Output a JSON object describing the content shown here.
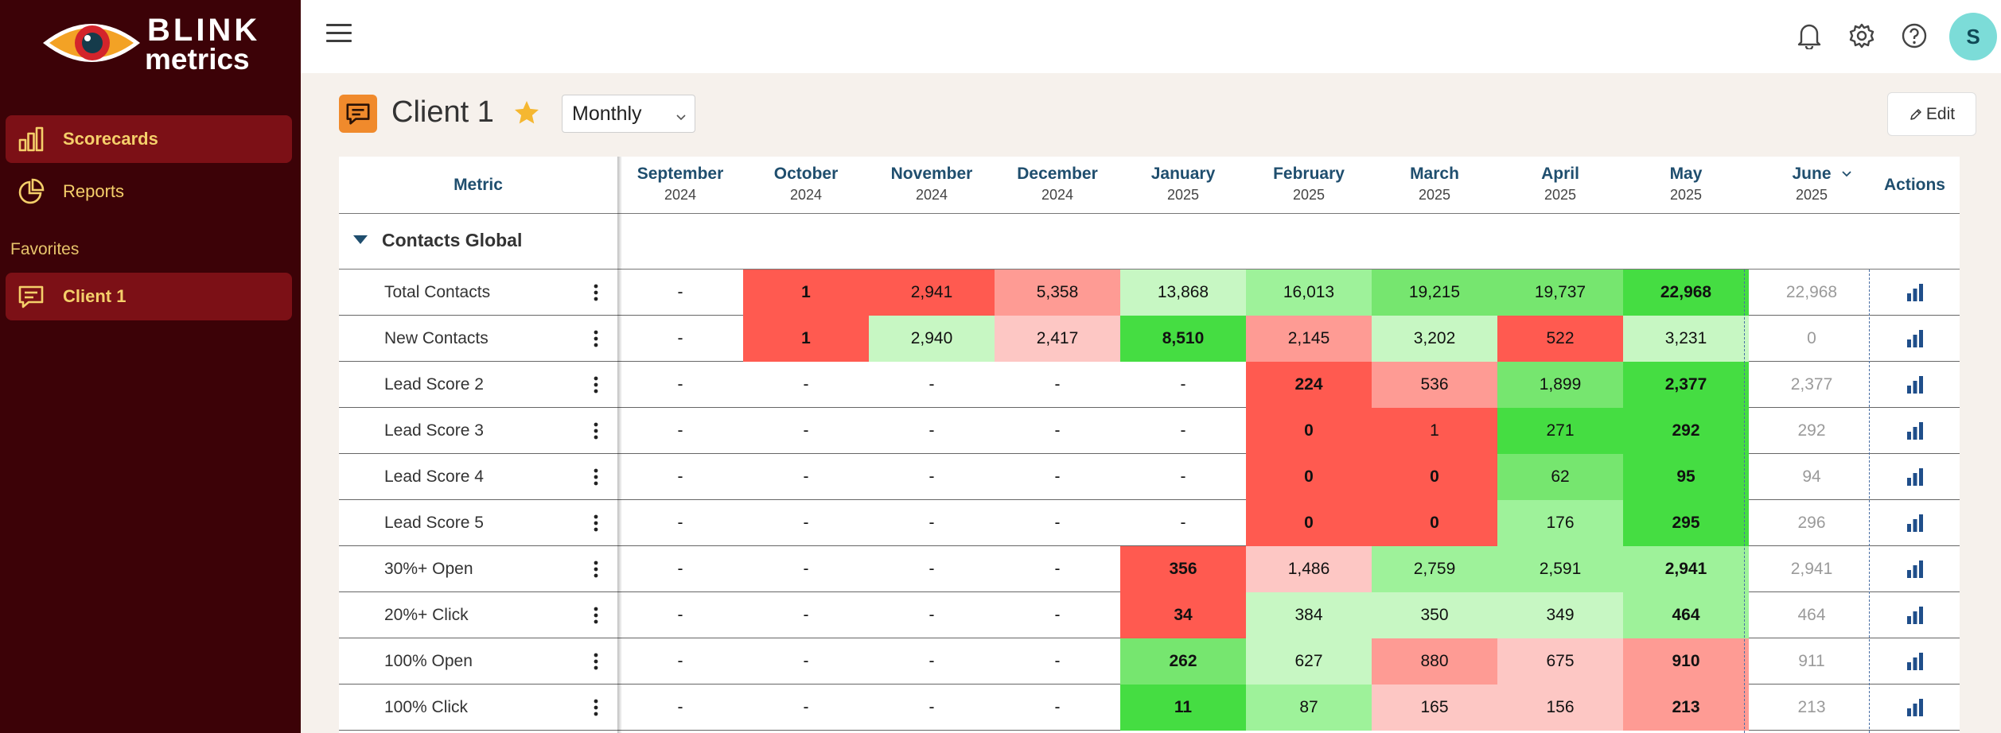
{
  "brand": {
    "line1": "BLINK",
    "line2": "metrics"
  },
  "sidebar": {
    "items": [
      {
        "label": "Scorecards",
        "icon": "bar-chart-icon",
        "active": true
      },
      {
        "label": "Reports",
        "icon": "pie-chart-icon",
        "active": false
      }
    ],
    "favorites_title": "Favorites",
    "favorites": [
      {
        "label": "Client 1",
        "icon": "chat-icon",
        "active": true
      }
    ]
  },
  "header": {
    "avatar_initial": "S"
  },
  "page": {
    "title": "Client 1",
    "period": "Monthly",
    "edit_label": "Edit"
  },
  "table": {
    "metric_header": "Metric",
    "actions_header": "Actions",
    "months": [
      {
        "month": "September",
        "year": "2024"
      },
      {
        "month": "October",
        "year": "2024"
      },
      {
        "month": "November",
        "year": "2024"
      },
      {
        "month": "December",
        "year": "2024"
      },
      {
        "month": "January",
        "year": "2025"
      },
      {
        "month": "February",
        "year": "2025"
      },
      {
        "month": "March",
        "year": "2025"
      },
      {
        "month": "April",
        "year": "2025"
      },
      {
        "month": "May",
        "year": "2025"
      },
      {
        "month": "June",
        "year": "2025"
      }
    ],
    "group": "Contacts Global",
    "colors": {
      "red": "#ff5a50",
      "pink": "#fe9b94",
      "lightpink": "#fdc7c4",
      "lightgreen": "#c7f7c3",
      "midgreen": "#9ef29a",
      "green": "#76e66f",
      "brightgreen": "#45dd42"
    },
    "rows": [
      {
        "label": "Total Contacts",
        "values": [
          "-",
          "1",
          "2,941",
          "5,358",
          "13,868",
          "16,013",
          "19,215",
          "19,737",
          "22,968",
          "22,968"
        ],
        "colors": [
          "",
          "red",
          "red",
          "pink",
          "lightgreen",
          "midgreen",
          "green",
          "green",
          "brightgreen",
          ""
        ],
        "bold": [
          false,
          true,
          false,
          false,
          false,
          false,
          false,
          false,
          true,
          false
        ]
      },
      {
        "label": "New Contacts",
        "values": [
          "-",
          "1",
          "2,940",
          "2,417",
          "8,510",
          "2,145",
          "3,202",
          "522",
          "3,231",
          "0"
        ],
        "colors": [
          "",
          "red",
          "lightgreen",
          "lightpink",
          "brightgreen",
          "pink",
          "lightgreen",
          "red",
          "lightgreen",
          ""
        ],
        "bold": [
          false,
          true,
          false,
          false,
          true,
          false,
          false,
          false,
          false,
          false
        ]
      },
      {
        "label": "Lead Score 2",
        "values": [
          "-",
          "-",
          "-",
          "-",
          "-",
          "224",
          "536",
          "1,899",
          "2,377",
          "2,377"
        ],
        "colors": [
          "",
          "",
          "",
          "",
          "",
          "red",
          "pink",
          "green",
          "brightgreen",
          ""
        ],
        "bold": [
          false,
          false,
          false,
          false,
          false,
          true,
          false,
          false,
          true,
          false
        ]
      },
      {
        "label": "Lead Score 3",
        "values": [
          "-",
          "-",
          "-",
          "-",
          "-",
          "0",
          "1",
          "271",
          "292",
          "292"
        ],
        "colors": [
          "",
          "",
          "",
          "",
          "",
          "red",
          "red",
          "brightgreen",
          "brightgreen",
          ""
        ],
        "bold": [
          false,
          false,
          false,
          false,
          false,
          true,
          false,
          false,
          true,
          false
        ]
      },
      {
        "label": "Lead Score 4",
        "values": [
          "-",
          "-",
          "-",
          "-",
          "-",
          "0",
          "0",
          "62",
          "95",
          "94"
        ],
        "colors": [
          "",
          "",
          "",
          "",
          "",
          "red",
          "red",
          "green",
          "brightgreen",
          ""
        ],
        "bold": [
          false,
          false,
          false,
          false,
          false,
          true,
          true,
          false,
          true,
          false
        ]
      },
      {
        "label": "Lead Score 5",
        "values": [
          "-",
          "-",
          "-",
          "-",
          "-",
          "0",
          "0",
          "176",
          "295",
          "296"
        ],
        "colors": [
          "",
          "",
          "",
          "",
          "",
          "red",
          "red",
          "midgreen",
          "brightgreen",
          ""
        ],
        "bold": [
          false,
          false,
          false,
          false,
          false,
          true,
          true,
          false,
          true,
          false
        ]
      },
      {
        "label": "30%+ Open",
        "values": [
          "-",
          "-",
          "-",
          "-",
          "356",
          "1,486",
          "2,759",
          "2,591",
          "2,941",
          "2,941"
        ],
        "colors": [
          "",
          "",
          "",
          "",
          "red",
          "lightpink",
          "midgreen",
          "midgreen",
          "midgreen",
          ""
        ],
        "bold": [
          false,
          false,
          false,
          false,
          true,
          false,
          false,
          false,
          true,
          false
        ]
      },
      {
        "label": "20%+ Click",
        "values": [
          "-",
          "-",
          "-",
          "-",
          "34",
          "384",
          "350",
          "349",
          "464",
          "464"
        ],
        "colors": [
          "",
          "",
          "",
          "",
          "red",
          "lightgreen",
          "lightgreen",
          "lightgreen",
          "midgreen",
          ""
        ],
        "bold": [
          false,
          false,
          false,
          false,
          true,
          false,
          false,
          false,
          true,
          false
        ]
      },
      {
        "label": "100% Open",
        "values": [
          "-",
          "-",
          "-",
          "-",
          "262",
          "627",
          "880",
          "675",
          "910",
          "911"
        ],
        "colors": [
          "",
          "",
          "",
          "",
          "green",
          "lightgreen",
          "pink",
          "lightpink",
          "pink",
          ""
        ],
        "bold": [
          false,
          false,
          false,
          false,
          true,
          false,
          false,
          false,
          true,
          false
        ]
      },
      {
        "label": "100% Click",
        "values": [
          "-",
          "-",
          "-",
          "-",
          "11",
          "87",
          "165",
          "156",
          "213",
          "213"
        ],
        "colors": [
          "",
          "",
          "",
          "",
          "brightgreen",
          "midgreen",
          "lightpink",
          "lightpink",
          "pink",
          ""
        ],
        "bold": [
          false,
          false,
          false,
          false,
          true,
          false,
          false,
          false,
          true,
          false
        ]
      }
    ]
  }
}
